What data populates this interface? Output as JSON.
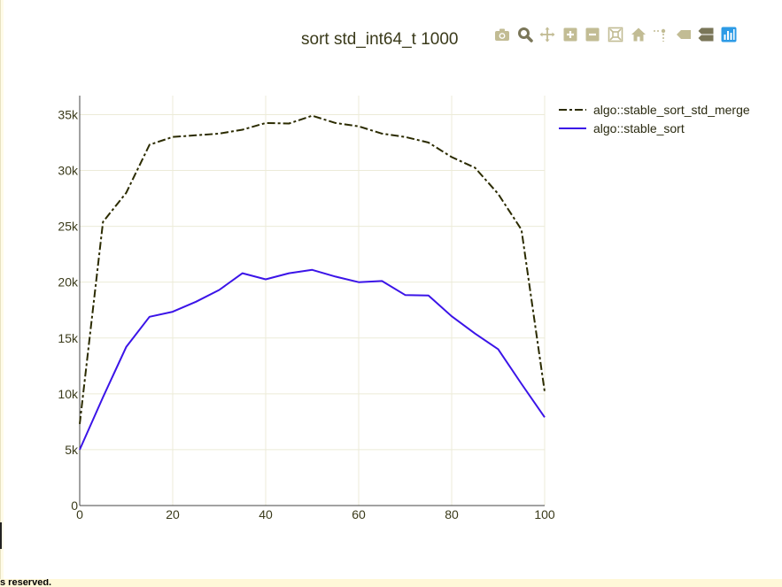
{
  "footer": {
    "text": "s reserved."
  },
  "modebar": {
    "buttons": [
      {
        "name": "download-plot-button",
        "icon": "camera-icon"
      },
      {
        "name": "zoom-button",
        "icon": "magnifier-icon"
      },
      {
        "name": "pan-button",
        "icon": "move-icon"
      },
      {
        "name": "zoom-in-button",
        "icon": "plus-icon"
      },
      {
        "name": "zoom-out-button",
        "icon": "minus-icon"
      },
      {
        "name": "autoscale-button",
        "icon": "autoscale-icon"
      },
      {
        "name": "reset-axes-button",
        "icon": "home-icon"
      },
      {
        "name": "spike-lines-button",
        "icon": "spike-icon"
      },
      {
        "name": "hover-closest-button",
        "icon": "tag-icon"
      },
      {
        "name": "hover-compare-button",
        "icon": "compare-icon"
      },
      {
        "name": "plotly-logo-button",
        "icon": "plotly-logo-icon"
      }
    ],
    "icon_color": "#c2bc94",
    "active_color": "#7a7658",
    "logo_color": "#2d9be6"
  },
  "chart_data": {
    "type": "line",
    "title": "sort std_int64_t 1000",
    "xlabel": "",
    "ylabel": "",
    "xlim": [
      0,
      100
    ],
    "ylim": [
      0,
      36700
    ],
    "x_ticks": [
      0,
      20,
      40,
      60,
      80,
      100
    ],
    "y_ticks": [
      0,
      5000,
      10000,
      15000,
      20000,
      25000,
      30000,
      35000
    ],
    "x_tick_labels": [
      "0",
      "20",
      "40",
      "60",
      "80",
      "100"
    ],
    "y_tick_labels": [
      "0",
      "5k",
      "10k",
      "15k",
      "20k",
      "25k",
      "30k",
      "35k"
    ],
    "grid": true,
    "legend_position": "top-right",
    "x": [
      0,
      5,
      10,
      15,
      20,
      25,
      30,
      35,
      40,
      45,
      50,
      55,
      60,
      65,
      70,
      75,
      80,
      85,
      90,
      95,
      100
    ],
    "series": [
      {
        "name": "algo::stable_sort_std_merge",
        "color": "#2b2b00",
        "dash": "dashdot",
        "values": [
          7300,
          25400,
          28000,
          32300,
          33000,
          33150,
          33300,
          33650,
          34250,
          34200,
          34900,
          34250,
          33950,
          33300,
          33000,
          32500,
          31200,
          30250,
          27900,
          24700,
          10200
        ]
      },
      {
        "name": "algo::stable_sort",
        "color": "#3b14e8",
        "dash": "solid",
        "values": [
          5000,
          9700,
          14200,
          16900,
          17350,
          18250,
          19300,
          20800,
          20250,
          20800,
          21100,
          20500,
          20000,
          20100,
          18850,
          18800,
          16950,
          15400,
          14000,
          10900,
          7900
        ]
      }
    ]
  }
}
